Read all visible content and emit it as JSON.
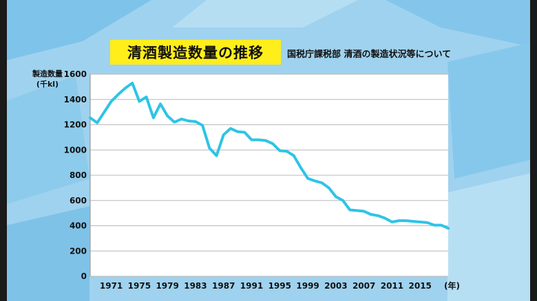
{
  "title": "清酒製造数量の推移",
  "source": "国税庁課税部 清酒の製造状況等について",
  "chart_data": {
    "type": "line",
    "title": "清酒製造数量の推移",
    "ylabel_line1": "製造数量",
    "ylabel_line2": "(千kl)",
    "xlabel": "(年)",
    "ylim": [
      0,
      1600
    ],
    "xlim": [
      1968,
      2019
    ],
    "yticks": [
      0,
      200,
      400,
      600,
      800,
      1000,
      1200,
      1400,
      1600
    ],
    "xticks": [
      1971,
      1975,
      1979,
      1983,
      1987,
      1991,
      1995,
      1999,
      2003,
      2007,
      2011,
      2015
    ],
    "grid": true,
    "line_color": "#2ec4e6",
    "x": [
      1968,
      1969,
      1970,
      1971,
      1972,
      1973,
      1974,
      1975,
      1976,
      1977,
      1978,
      1979,
      1980,
      1981,
      1982,
      1983,
      1984,
      1985,
      1986,
      1987,
      1988,
      1989,
      1990,
      1991,
      1992,
      1993,
      1994,
      1995,
      1996,
      1997,
      1998,
      1999,
      2000,
      2001,
      2002,
      2003,
      2004,
      2005,
      2006,
      2007,
      2008,
      2009,
      2010,
      2011,
      2012,
      2013,
      2014,
      2015,
      2016,
      2017,
      2018,
      2019
    ],
    "values": [
      1255,
      1215,
      1300,
      1385,
      1440,
      1490,
      1530,
      1385,
      1420,
      1255,
      1365,
      1270,
      1220,
      1245,
      1230,
      1225,
      1195,
      1015,
      955,
      1120,
      1170,
      1145,
      1140,
      1080,
      1080,
      1075,
      1050,
      995,
      990,
      955,
      860,
      775,
      755,
      740,
      700,
      630,
      600,
      525,
      520,
      515,
      490,
      480,
      460,
      430,
      440,
      440,
      435,
      430,
      425,
      405,
      405,
      380
    ]
  }
}
